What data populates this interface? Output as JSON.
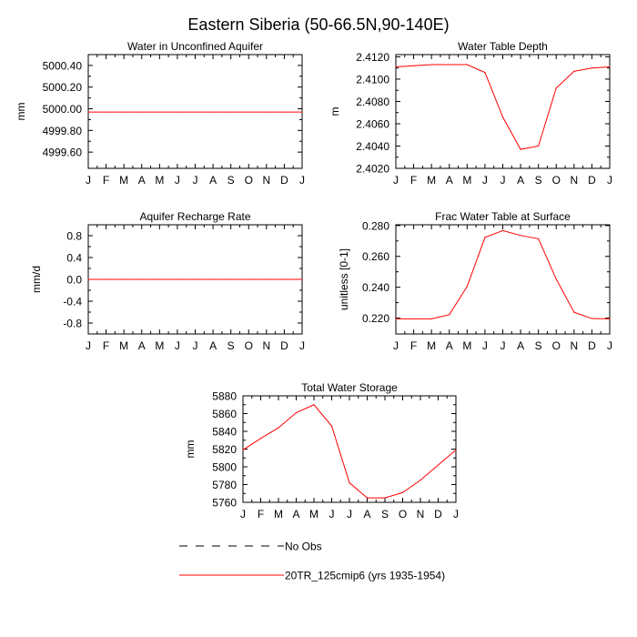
{
  "figure": {
    "title": "Eastern Siberia (50-66.5N,90-140E)",
    "months": [
      "J",
      "F",
      "M",
      "A",
      "M",
      "J",
      "J",
      "A",
      "S",
      "O",
      "N",
      "D",
      "J"
    ],
    "line_color": "#ff0000",
    "legend": [
      {
        "label": "No Obs",
        "style": "dashed",
        "color": "#000000"
      },
      {
        "label": "20TR_125cmip6 (yrs 1935-1954)",
        "style": "solid",
        "color": "#ff0000"
      }
    ]
  },
  "chart_data": [
    {
      "type": "line",
      "title": "Water in Unconfined Aquifer",
      "ylabel": "mm",
      "ylim": [
        4999.45,
        5000.5
      ],
      "yticks": [
        4999.6,
        4999.8,
        5000.0,
        5000.2,
        5000.4
      ],
      "ytick_labels": [
        "4999.60",
        "4999.80",
        "5000.00",
        "5000.20",
        "5000.40"
      ],
      "categories": [
        "J",
        "F",
        "M",
        "A",
        "M",
        "J",
        "J",
        "A",
        "S",
        "O",
        "N",
        "D",
        "J"
      ],
      "series": [
        {
          "name": "20TR_125cmip6 (yrs 1935-1954)",
          "values": [
            4999.97,
            4999.97,
            4999.97,
            4999.97,
            4999.97,
            4999.97,
            4999.97,
            4999.97,
            4999.97,
            4999.97,
            4999.97,
            4999.97,
            4999.97
          ]
        }
      ]
    },
    {
      "type": "line",
      "title": "Water Table Depth",
      "ylabel": "m",
      "ylim": [
        2.402,
        2.4122
      ],
      "yticks": [
        2.402,
        2.404,
        2.406,
        2.408,
        2.41,
        2.412
      ],
      "ytick_labels": [
        "2.4020",
        "2.4040",
        "2.4060",
        "2.4080",
        "2.4100",
        "2.4120"
      ],
      "categories": [
        "J",
        "F",
        "M",
        "A",
        "M",
        "J",
        "J",
        "A",
        "S",
        "O",
        "N",
        "D",
        "J"
      ],
      "series": [
        {
          "name": "20TR_125cmip6 (yrs 1935-1954)",
          "values": [
            2.4111,
            2.4112,
            2.4113,
            2.4113,
            2.4113,
            2.4106,
            2.4066,
            2.4037,
            2.404,
            2.4092,
            2.4107,
            2.411,
            2.4111
          ]
        }
      ]
    },
    {
      "type": "line",
      "title": "Aquifer Recharge Rate",
      "ylabel": "mm/d",
      "ylim": [
        -1.0,
        1.0
      ],
      "yticks": [
        -0.8,
        -0.4,
        0.0,
        0.4,
        0.8
      ],
      "ytick_labels": [
        "-0.8",
        "-0.4",
        "0.0",
        "0.4",
        "0.8"
      ],
      "categories": [
        "J",
        "F",
        "M",
        "A",
        "M",
        "J",
        "J",
        "A",
        "S",
        "O",
        "N",
        "D",
        "J"
      ],
      "series": [
        {
          "name": "20TR_125cmip6 (yrs 1935-1954)",
          "values": [
            0,
            0,
            0,
            0,
            0,
            0,
            0,
            0,
            0,
            0,
            0,
            0,
            0
          ]
        }
      ]
    },
    {
      "type": "line",
      "title": "Frac Water Table at Surface",
      "ylabel": "unitless [0-1]",
      "ylim": [
        0.2097,
        0.2805
      ],
      "yticks": [
        0.22,
        0.24,
        0.26,
        0.28
      ],
      "ytick_labels": [
        "0.220",
        "0.240",
        "0.260",
        "0.280"
      ],
      "categories": [
        "J",
        "F",
        "M",
        "A",
        "M",
        "J",
        "J",
        "A",
        "S",
        "O",
        "N",
        "D",
        "J"
      ],
      "series": [
        {
          "name": "20TR_125cmip6 (yrs 1935-1954)",
          "values": [
            0.2195,
            0.2195,
            0.2195,
            0.2222,
            0.2405,
            0.2723,
            0.2767,
            0.2736,
            0.2714,
            0.2453,
            0.2238,
            0.2197,
            0.2195
          ]
        }
      ]
    },
    {
      "type": "line",
      "title": "Total Water Storage",
      "ylabel": "mm",
      "ylim": [
        5760,
        5880
      ],
      "yticks": [
        5760,
        5780,
        5800,
        5820,
        5840,
        5860,
        5880
      ],
      "ytick_labels": [
        "5760",
        "5780",
        "5800",
        "5820",
        "5840",
        "5860",
        "5880"
      ],
      "categories": [
        "J",
        "F",
        "M",
        "A",
        "M",
        "J",
        "J",
        "A",
        "S",
        "O",
        "N",
        "D",
        "J"
      ],
      "series": [
        {
          "name": "20TR_125cmip6 (yrs 1935-1954)",
          "values": [
            5819,
            5832,
            5844,
            5861,
            5870,
            5846,
            5782,
            5765,
            5765,
            5771,
            5785,
            5802,
            5819
          ]
        }
      ]
    }
  ]
}
